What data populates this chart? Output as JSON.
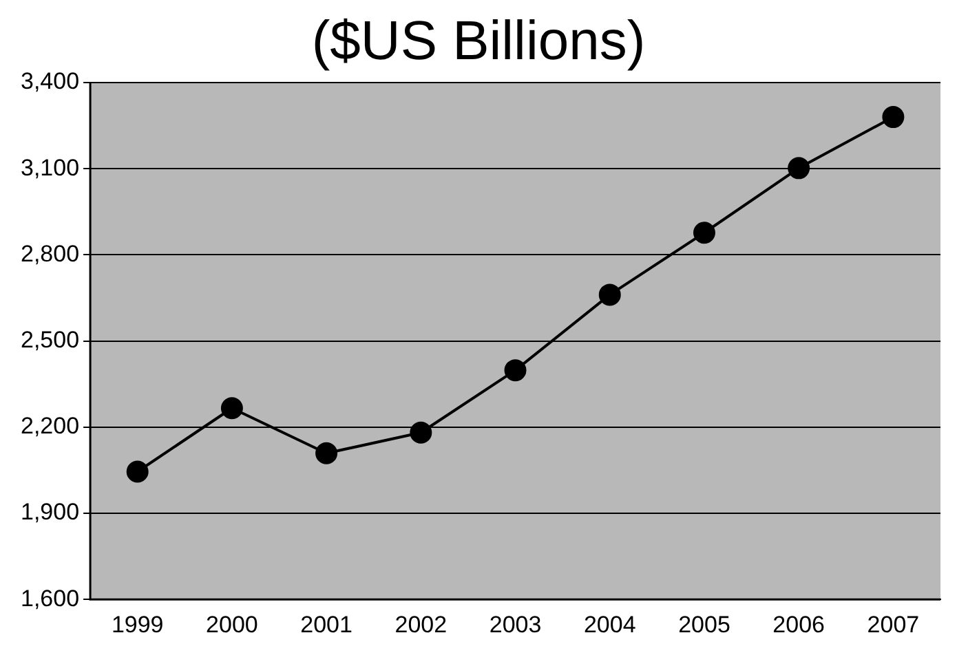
{
  "chart_data": {
    "type": "line",
    "title": "($US Billions)",
    "categories": [
      "1999",
      "2000",
      "2001",
      "2002",
      "2003",
      "2004",
      "2005",
      "2006",
      "2007"
    ],
    "series": [
      {
        "color": "#000000",
        "values": [
          2045,
          2266,
          2109,
          2181,
          2398,
          2661,
          2877,
          3102,
          3280
        ]
      }
    ],
    "ylim": [
      1600,
      3400
    ],
    "yticks": [
      {
        "value": 1600,
        "label": "1,600"
      },
      {
        "value": 1900,
        "label": "1,900"
      },
      {
        "value": 2200,
        "label": "2,200"
      },
      {
        "value": 2500,
        "label": "2,500"
      },
      {
        "value": 2800,
        "label": "2,800"
      },
      {
        "value": 3100,
        "label": "3,100"
      },
      {
        "value": 3400,
        "label": "3,400"
      }
    ],
    "grid": "y",
    "marker": "circle",
    "line_style": "solid",
    "legend": false
  }
}
